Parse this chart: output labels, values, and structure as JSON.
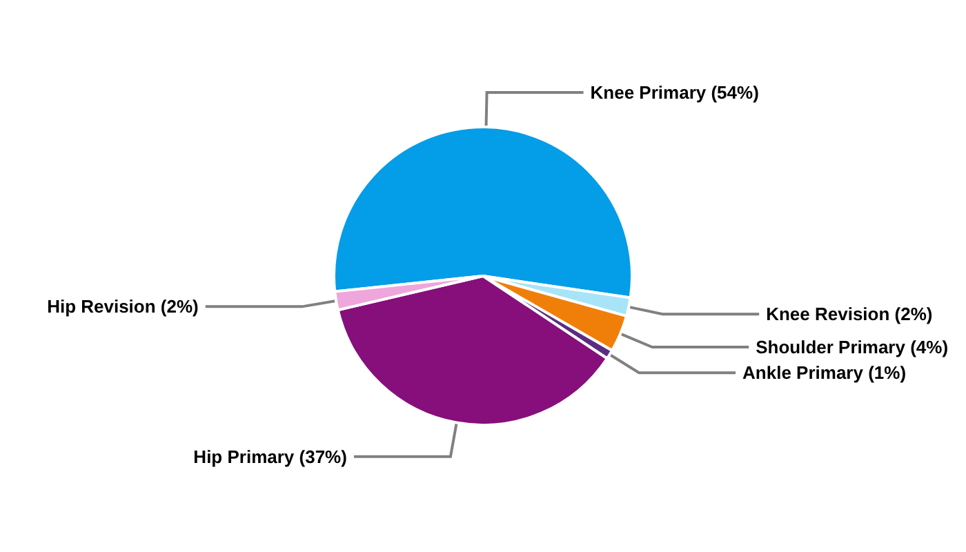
{
  "chart_data": {
    "type": "pie",
    "categories": [
      "Knee Primary",
      "Knee Revision",
      "Shoulder Primary",
      "Ankle Primary",
      "Hip Primary",
      "Hip Revision"
    ],
    "values": [
      54,
      2,
      4,
      1,
      37,
      2
    ],
    "value_labels": [
      "(54%)",
      "(2%)",
      "(4%)",
      "(1%)",
      "(37%)",
      "(2%)"
    ],
    "colors": [
      "#049de8",
      "#a8e4f7",
      "#f07f0a",
      "#5a2d82",
      "#860f7b",
      "#eea6dc"
    ],
    "legend": false
  }
}
